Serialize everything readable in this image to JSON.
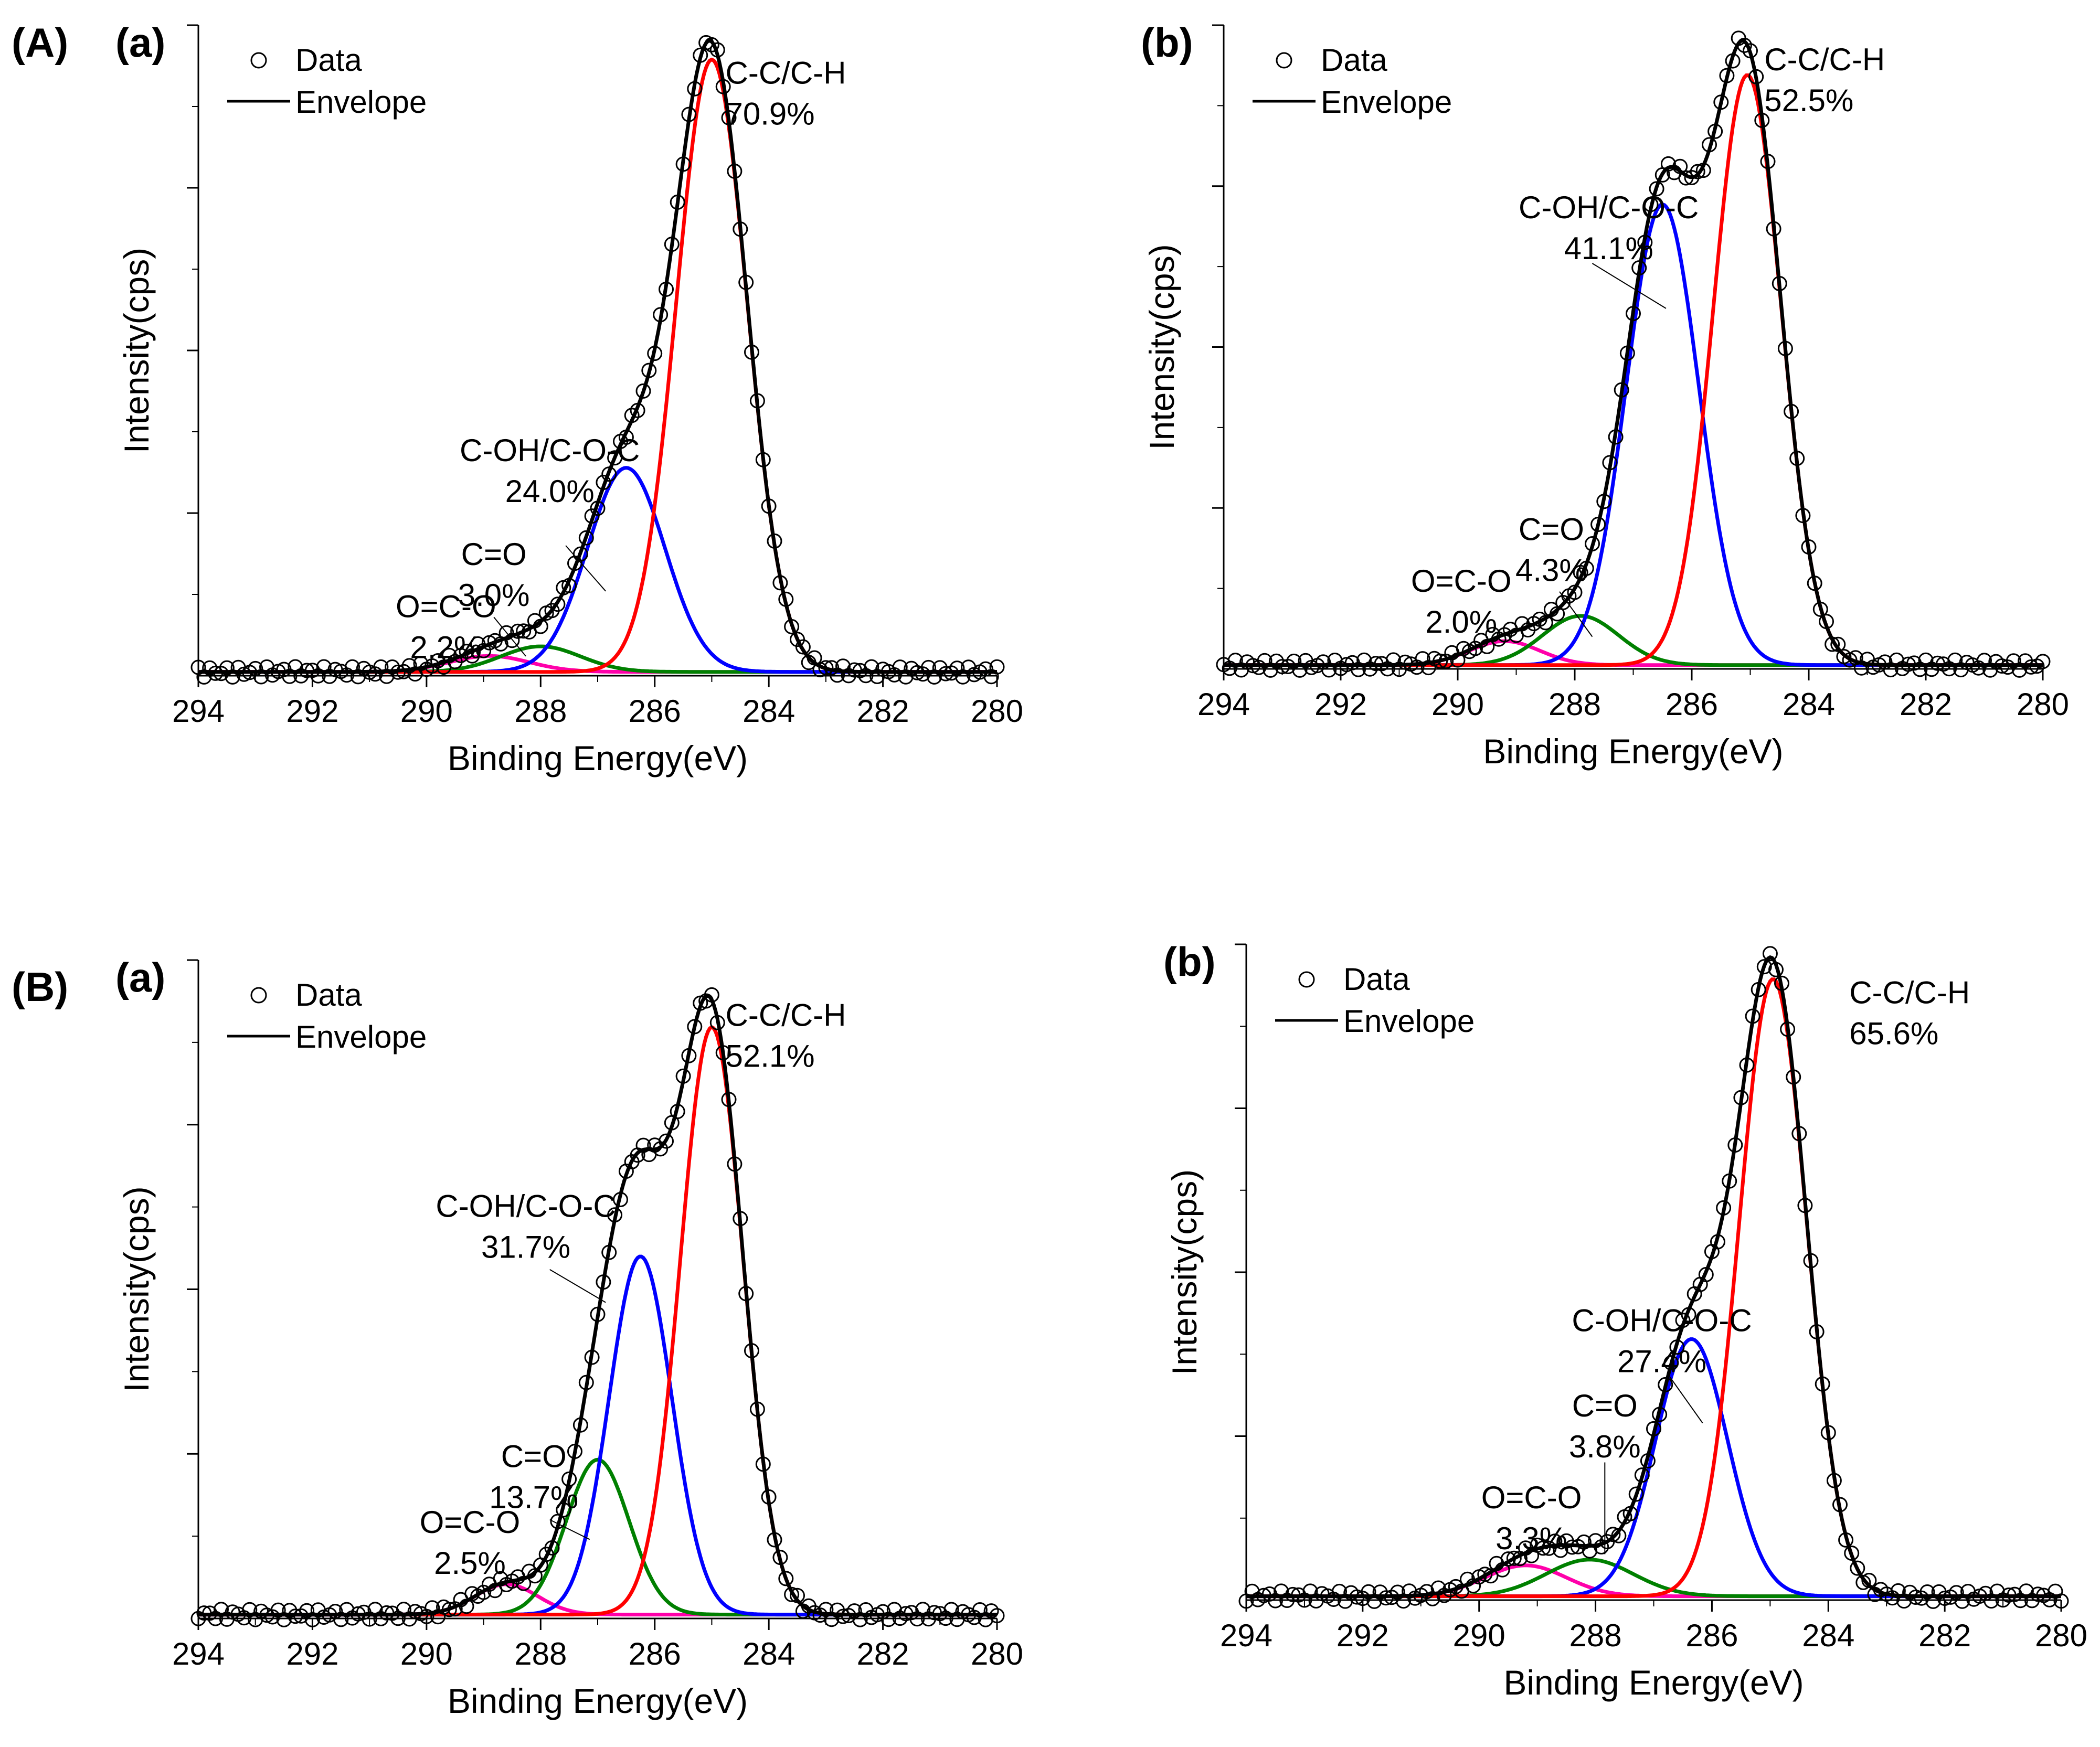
{
  "figure": {
    "group_labels": [
      "(A)",
      "(B)"
    ]
  },
  "chart_data": [
    {
      "type": "line",
      "group": "(A)",
      "panel_label": "(a)",
      "xlabel": "Binding Energy(eV)",
      "ylabel": "Intensity(cps)",
      "xlim": [
        294,
        280
      ],
      "xticks": [
        294,
        292,
        290,
        288,
        286,
        284,
        282,
        280
      ],
      "ylim": [
        0,
        1.02
      ],
      "legend": {
        "position": "top-left",
        "data_label": "Data",
        "envelope_label": "Envelope"
      },
      "colors": {
        "data": "#000000",
        "envelope": "#000000"
      },
      "components": [
        {
          "name": "C-C/C-H",
          "percent": "70.9%",
          "center": 285.0,
          "height": 0.96,
          "sigma": 0.62,
          "color": "#ff0000"
        },
        {
          "name": "C-OH/C-O-C",
          "percent": "24.0%",
          "center": 286.5,
          "height": 0.32,
          "sigma": 0.68,
          "color": "#0000ff"
        },
        {
          "name": "C=O",
          "percent": "3.0%",
          "center": 288.0,
          "height": 0.04,
          "sigma": 0.7,
          "color": "#008000"
        },
        {
          "name": "O=C-O",
          "percent": "2.2%",
          "center": 288.9,
          "height": 0.025,
          "sigma": 0.7,
          "color": "#ff00aa"
        }
      ],
      "annotations": [
        {
          "component": "C-C/C-H",
          "lines": [
            "C-C/C-H",
            "70.9%"
          ]
        },
        {
          "component": "C-OH/C-O-C",
          "lines": [
            "C-OH/C-O-C",
            "24.0%"
          ]
        },
        {
          "component": "C=O",
          "lines": [
            "C=O",
            "3.0%"
          ]
        },
        {
          "component": "O=C-O",
          "lines": [
            "O=C-O",
            "2.2%"
          ]
        }
      ]
    },
    {
      "type": "line",
      "group": "(A)",
      "panel_label": "(b)",
      "xlabel": "Binding Energy(eV)",
      "ylabel": "Intensity(cps)",
      "xlim": [
        294,
        280
      ],
      "xticks": [
        294,
        292,
        290,
        288,
        286,
        284,
        282,
        280
      ],
      "ylim": [
        0,
        1.02
      ],
      "legend": {
        "position": "top-left",
        "data_label": "Data",
        "envelope_label": "Envelope"
      },
      "colors": {
        "data": "#000000",
        "envelope": "#000000"
      },
      "components": [
        {
          "name": "C-C/C-H",
          "percent": "52.5%",
          "center": 285.05,
          "height": 0.935,
          "sigma": 0.58,
          "color": "#ff0000"
        },
        {
          "name": "C-OH/C-O-C",
          "percent": "41.1%",
          "center": 286.5,
          "height": 0.73,
          "sigma": 0.62,
          "color": "#0000ff"
        },
        {
          "name": "C=O",
          "percent": "4.3%",
          "center": 287.9,
          "height": 0.078,
          "sigma": 0.65,
          "color": "#008000"
        },
        {
          "name": "O=C-O",
          "percent": "2.0%",
          "center": 289.2,
          "height": 0.038,
          "sigma": 0.6,
          "color": "#ff00aa"
        }
      ],
      "annotations": [
        {
          "component": "C-C/C-H",
          "lines": [
            "C-C/C-H",
            "52.5%"
          ]
        },
        {
          "component": "C-OH/C-O-C",
          "lines": [
            "C-OH/C-O-C",
            "41.1%"
          ]
        },
        {
          "component": "C=O",
          "lines": [
            "C=O",
            "4.3%"
          ]
        },
        {
          "component": "O=C-O",
          "lines": [
            "O=C-O",
            "2.0%"
          ]
        }
      ]
    },
    {
      "type": "line",
      "group": "(B)",
      "panel_label": "(a)",
      "xlabel": "Binding Energy(eV)",
      "ylabel": "Intensity(cps)",
      "xlim": [
        294,
        280
      ],
      "xticks": [
        294,
        292,
        290,
        288,
        286,
        284,
        282,
        280
      ],
      "ylim": [
        0,
        1.02
      ],
      "legend": {
        "position": "top-left",
        "data_label": "Data",
        "envelope_label": "Envelope"
      },
      "colors": {
        "data": "#000000",
        "envelope": "#000000"
      },
      "components": [
        {
          "name": "C-C/C-H",
          "percent": "52.1%",
          "center": 285.0,
          "height": 0.91,
          "sigma": 0.55,
          "color": "#ff0000"
        },
        {
          "name": "C-OH/C-O-C",
          "percent": "31.7%",
          "center": 286.25,
          "height": 0.555,
          "sigma": 0.55,
          "color": "#0000ff"
        },
        {
          "name": "C=O",
          "percent": "13.7%",
          "center": 287.0,
          "height": 0.24,
          "sigma": 0.55,
          "color": "#008000"
        },
        {
          "name": "O=C-O",
          "percent": "2.5%",
          "center": 288.6,
          "height": 0.047,
          "sigma": 0.55,
          "color": "#ff00aa"
        }
      ],
      "annotations": [
        {
          "component": "C-C/C-H",
          "lines": [
            "C-C/C-H",
            "52.1%"
          ]
        },
        {
          "component": "C-OH/C-O-C",
          "lines": [
            "C-OH/C-O-C",
            "31.7%"
          ]
        },
        {
          "component": "C=O",
          "lines": [
            "C=O",
            "13.7%"
          ]
        },
        {
          "component": "O=C-O",
          "lines": [
            "O=C-O",
            "2.5%"
          ]
        }
      ]
    },
    {
      "type": "line",
      "group": "(B)",
      "panel_label": "(b)",
      "xlabel": "Binding Energy(eV)",
      "ylabel": "Intensity(cps)",
      "xlim": [
        294,
        280
      ],
      "xticks": [
        294,
        292,
        290,
        288,
        286,
        284,
        282,
        280
      ],
      "ylim": [
        0,
        1.02
      ],
      "legend": {
        "position": "top-left",
        "data_label": "Data",
        "envelope_label": "Envelope"
      },
      "colors": {
        "data": "#000000",
        "envelope": "#000000"
      },
      "components": [
        {
          "name": "C-C/C-H",
          "percent": "65.6%",
          "center": 284.95,
          "height": 0.96,
          "sigma": 0.58,
          "color": "#ff0000"
        },
        {
          "name": "C-OH/C-O-C",
          "percent": "27.4%",
          "center": 286.35,
          "height": 0.4,
          "sigma": 0.62,
          "color": "#0000ff"
        },
        {
          "name": "C=O",
          "percent": "3.8%",
          "center": 288.1,
          "height": 0.057,
          "sigma": 0.75,
          "color": "#008000"
        },
        {
          "name": "O=C-O",
          "percent": "3.3%",
          "center": 289.2,
          "height": 0.048,
          "sigma": 0.7,
          "color": "#ff00aa"
        }
      ],
      "annotations": [
        {
          "component": "C-C/C-H",
          "lines": [
            "C-C/C-H",
            "65.6%"
          ]
        },
        {
          "component": "C-OH/C-O-C",
          "lines": [
            "C-OH/C-O-C",
            "27.4%"
          ]
        },
        {
          "component": "C=O",
          "lines": [
            "C=O",
            "3.8%"
          ]
        },
        {
          "component": "O=C-O",
          "lines": [
            "O=C-O",
            "3.3%"
          ]
        }
      ]
    }
  ]
}
